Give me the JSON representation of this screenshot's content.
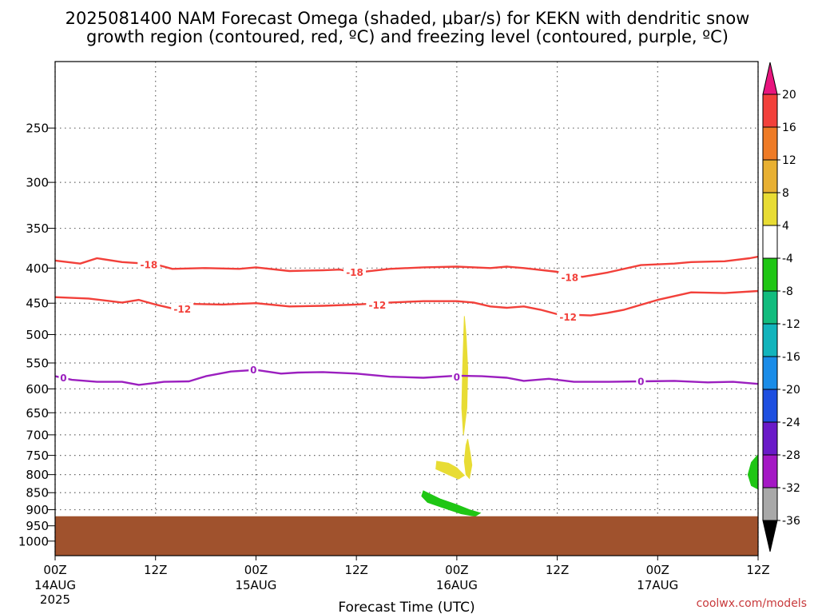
{
  "title": {
    "line1": "2025081400 NAM Forecast Omega (shaded, μbar/s) for KEKN with dendritic snow",
    "line2": "growth region (contoured, red, ºC) and freezing level (contoured, purple, ºC)"
  },
  "credit": "coolwx.com/models",
  "chart_data": {
    "type": "contour",
    "xlabel": "Forecast Time (UTC)",
    "ylabel": "",
    "x_unit": "hours",
    "xlim": [
      0,
      84
    ],
    "x_ticks": [
      {
        "hour": 0,
        "label": "00Z",
        "sub": "14AUG",
        "sub2": "2025"
      },
      {
        "hour": 12,
        "label": "12Z",
        "sub": "",
        "sub2": ""
      },
      {
        "hour": 24,
        "label": "00Z",
        "sub": "15AUG",
        "sub2": ""
      },
      {
        "hour": 36,
        "label": "12Z",
        "sub": "",
        "sub2": ""
      },
      {
        "hour": 48,
        "label": "00Z",
        "sub": "16AUG",
        "sub2": ""
      },
      {
        "hour": 60,
        "label": "12Z",
        "sub": "",
        "sub2": ""
      },
      {
        "hour": 72,
        "label": "00Z",
        "sub": "17AUG",
        "sub2": ""
      },
      {
        "hour": 84,
        "label": "12Z",
        "sub": "",
        "sub2": ""
      }
    ],
    "y_unit": "hPa",
    "y_scale": "log",
    "ylim": [
      1050,
      200
    ],
    "y_ticks": [
      250,
      300,
      350,
      400,
      450,
      500,
      550,
      600,
      650,
      700,
      750,
      800,
      850,
      900,
      950,
      1000
    ],
    "grid": true,
    "terrain": {
      "color": "#a0522d",
      "top_hpa": 920
    },
    "contours": [
      {
        "level": -18,
        "label": "-18",
        "color": "#f2403a",
        "points": [
          [
            0,
            390
          ],
          [
            3,
            394
          ],
          [
            5,
            387
          ],
          [
            8,
            392
          ],
          [
            12,
            395
          ],
          [
            14,
            401
          ],
          [
            18,
            400
          ],
          [
            22,
            401
          ],
          [
            24,
            399
          ],
          [
            28,
            404
          ],
          [
            32,
            403
          ],
          [
            34,
            402
          ],
          [
            36,
            406
          ],
          [
            40,
            401
          ],
          [
            44,
            399
          ],
          [
            48,
            398
          ],
          [
            52,
            400
          ],
          [
            54,
            398
          ],
          [
            56,
            400
          ],
          [
            60,
            405
          ],
          [
            63,
            412
          ],
          [
            66,
            406
          ],
          [
            70,
            396
          ],
          [
            74,
            394
          ],
          [
            76,
            392
          ],
          [
            80,
            391
          ],
          [
            83,
            387
          ],
          [
            84,
            385
          ]
        ],
        "labels": [
          [
            11.2,
            395
          ],
          [
            35.8,
            405
          ],
          [
            61.5,
            412
          ]
        ]
      },
      {
        "level": -12,
        "label": "-12",
        "color": "#f2403a",
        "points": [
          [
            0,
            441
          ],
          [
            4,
            443
          ],
          [
            8,
            449
          ],
          [
            10,
            445
          ],
          [
            12,
            452
          ],
          [
            14,
            458
          ],
          [
            16,
            451
          ],
          [
            20,
            452
          ],
          [
            24,
            450
          ],
          [
            28,
            455
          ],
          [
            32,
            454
          ],
          [
            36,
            452
          ],
          [
            40,
            449
          ],
          [
            44,
            447
          ],
          [
            48,
            447
          ],
          [
            50,
            449
          ],
          [
            52,
            455
          ],
          [
            54,
            457
          ],
          [
            56,
            455
          ],
          [
            58,
            460
          ],
          [
            60,
            467
          ],
          [
            64,
            469
          ],
          [
            66,
            465
          ],
          [
            68,
            460
          ],
          [
            72,
            445
          ],
          [
            76,
            434
          ],
          [
            80,
            435
          ],
          [
            84,
            432
          ]
        ],
        "labels": [
          [
            15.2,
            458
          ],
          [
            38.5,
            452
          ],
          [
            61.3,
            471
          ]
        ]
      },
      {
        "level": 0,
        "label": "0",
        "color": "#9b1fbf",
        "points": [
          [
            0,
            575
          ],
          [
            2,
            582
          ],
          [
            5,
            586
          ],
          [
            8,
            586
          ],
          [
            10,
            592
          ],
          [
            12,
            588
          ],
          [
            13,
            586
          ],
          [
            16,
            585
          ],
          [
            18,
            575
          ],
          [
            21,
            566
          ],
          [
            24,
            563
          ],
          [
            27,
            570
          ],
          [
            29,
            568
          ],
          [
            32,
            567
          ],
          [
            36,
            570
          ],
          [
            40,
            576
          ],
          [
            44,
            578
          ],
          [
            48,
            574
          ],
          [
            51,
            575
          ],
          [
            54,
            578
          ],
          [
            56,
            584
          ],
          [
            59,
            580
          ],
          [
            62,
            586
          ],
          [
            66,
            586
          ],
          [
            70,
            585
          ],
          [
            74,
            584
          ],
          [
            78,
            587
          ],
          [
            81,
            586
          ],
          [
            84,
            590
          ]
        ],
        "labels": [
          [
            1.0,
            577
          ],
          [
            23.7,
            562
          ],
          [
            48.0,
            576
          ],
          [
            70.0,
            584
          ]
        ]
      }
    ],
    "shaded_regions": [
      {
        "omega_bin": "4 to 8",
        "color": "#e8dc34",
        "points": [
          [
            48.9,
            470
          ],
          [
            48.7,
            560
          ],
          [
            48.6,
            640
          ],
          [
            48.8,
            700
          ],
          [
            49.2,
            640
          ],
          [
            49.3,
            560
          ],
          [
            49.1,
            500
          ]
        ]
      },
      {
        "omega_bin": "4 to 8",
        "color": "#e8dc34",
        "points": [
          [
            49.1,
            725
          ],
          [
            48.9,
            765
          ],
          [
            49.1,
            800
          ],
          [
            49.5,
            810
          ],
          [
            49.8,
            775
          ],
          [
            49.6,
            745
          ],
          [
            49.3,
            710
          ]
        ]
      },
      {
        "omega_bin": "4 to 8",
        "color": "#e8dc34",
        "points": [
          [
            45.6,
            765
          ],
          [
            45.5,
            785
          ],
          [
            47.0,
            800
          ],
          [
            48.2,
            812
          ],
          [
            48.9,
            802
          ],
          [
            48.0,
            782
          ],
          [
            47.0,
            770
          ]
        ]
      },
      {
        "omega_bin": "-8 to -4",
        "color": "#1fc614",
        "points": [
          [
            44.0,
            845
          ],
          [
            46.0,
            868
          ],
          [
            48.0,
            885
          ],
          [
            49.5,
            900
          ],
          [
            50.8,
            910
          ],
          [
            50.2,
            920
          ],
          [
            48.5,
            912
          ],
          [
            46.5,
            895
          ],
          [
            44.5,
            878
          ],
          [
            43.8,
            860
          ]
        ]
      },
      {
        "omega_bin": "-8 to -4",
        "color": "#1fc614",
        "points": [
          [
            84,
            748
          ],
          [
            83.2,
            768
          ],
          [
            82.8,
            800
          ],
          [
            83.2,
            830
          ],
          [
            84,
            840
          ]
        ]
      }
    ],
    "colorbar": {
      "units": "μbar/s",
      "top_arrow_color": "#e8157e",
      "bottom_arrow_color": "#000000",
      "bins": [
        {
          "from": 16,
          "to": 20,
          "color": "#f2403a"
        },
        {
          "from": 12,
          "to": 16,
          "color": "#ee7b26"
        },
        {
          "from": 8,
          "to": 12,
          "color": "#e8b032"
        },
        {
          "from": 4,
          "to": 8,
          "color": "#e8dc34"
        },
        {
          "from": -4,
          "to": 4,
          "color": "#ffffff"
        },
        {
          "from": -8,
          "to": -4,
          "color": "#1fc614"
        },
        {
          "from": -12,
          "to": -8,
          "color": "#12bc7e"
        },
        {
          "from": -16,
          "to": -12,
          "color": "#12b4bc"
        },
        {
          "from": -20,
          "to": -16,
          "color": "#1a8ce8"
        },
        {
          "from": -24,
          "to": -20,
          "color": "#1e4fe0"
        },
        {
          "from": -28,
          "to": -24,
          "color": "#6a1ac8"
        },
        {
          "from": -32,
          "to": -28,
          "color": "#a418c4"
        },
        {
          "from": -36,
          "to": -32,
          "color": "#a8a8a8"
        }
      ],
      "tick_labels": [
        "20",
        "16",
        "12",
        "8",
        "4",
        "-4",
        "-8",
        "-12",
        "-16",
        "-20",
        "-24",
        "-28",
        "-32",
        "-36"
      ]
    }
  }
}
